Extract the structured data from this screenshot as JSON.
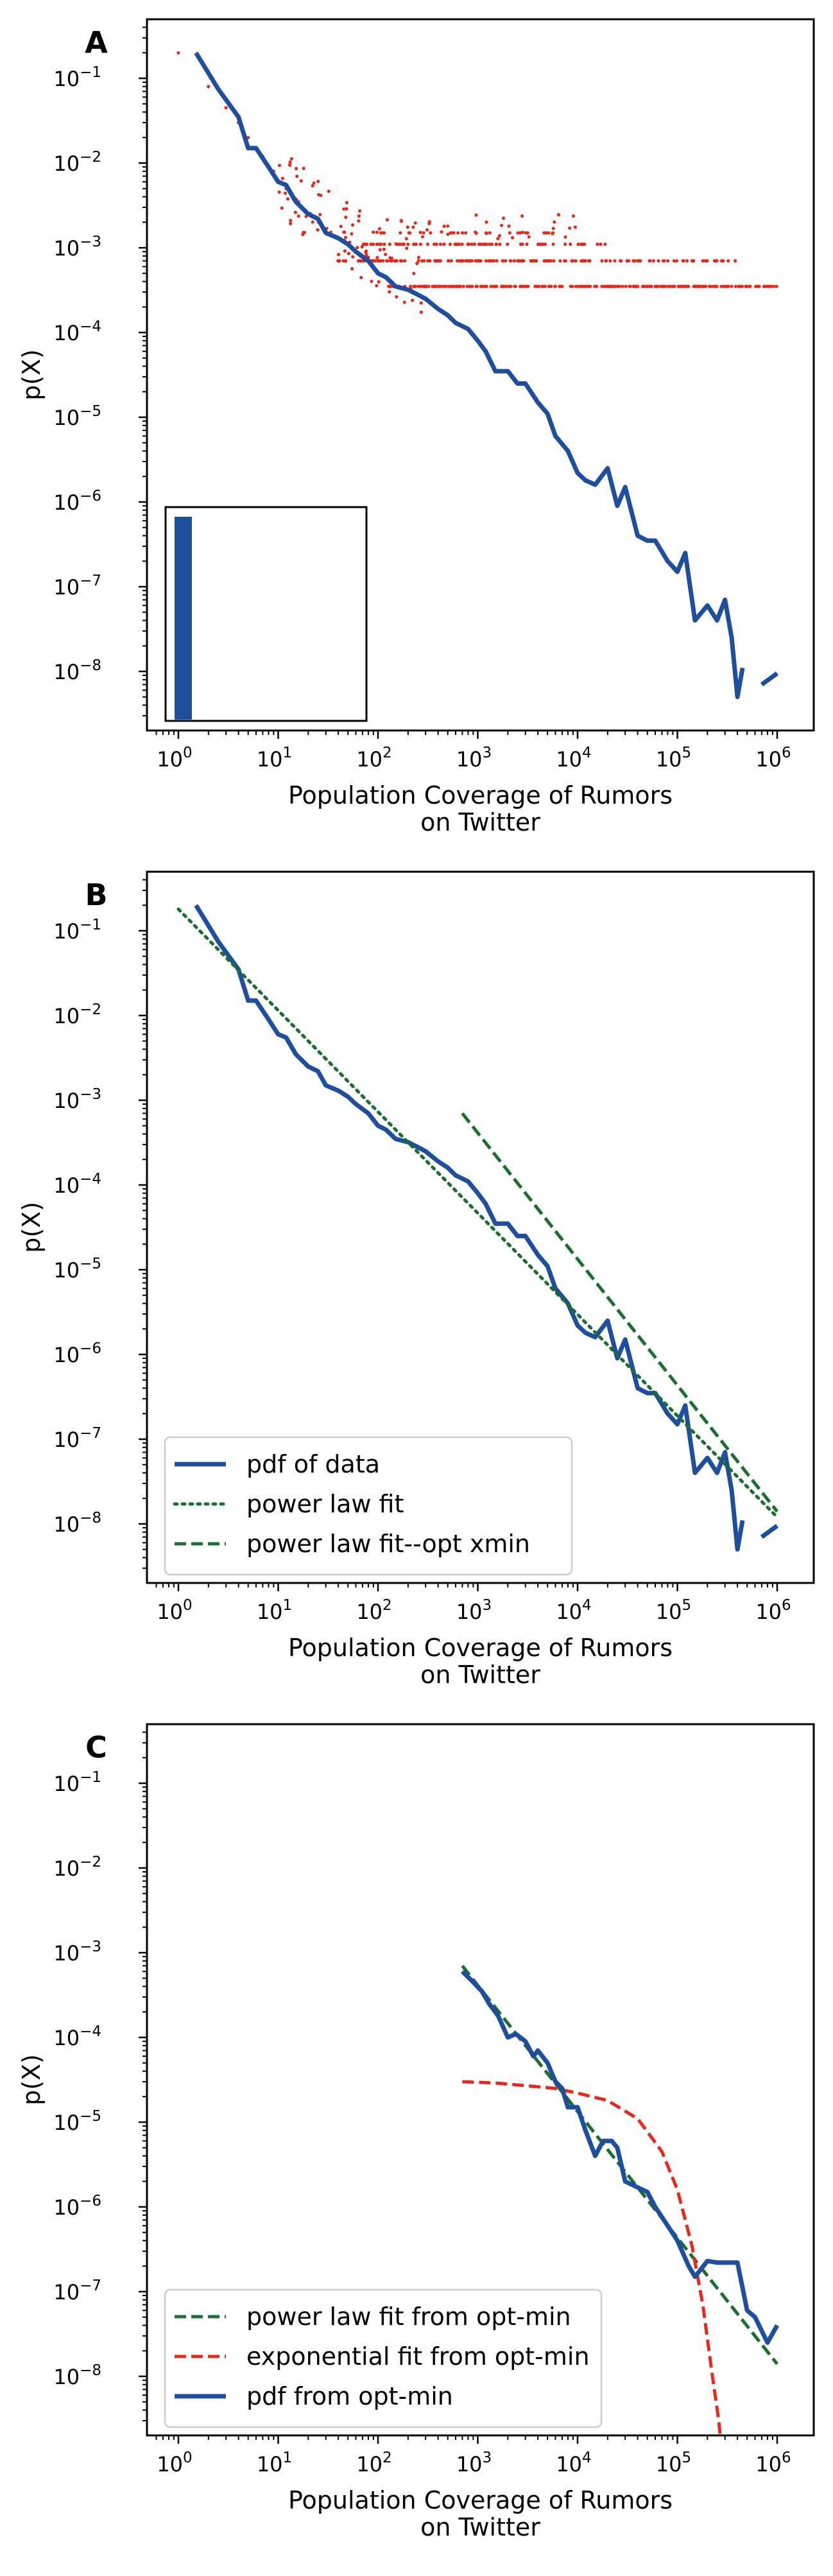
{
  "chart_data": [
    {
      "type": "line",
      "panel": "A",
      "xlabel": "Population Coverage of Rumors\non Twitter",
      "ylabel": "p(X)",
      "xscale": "log",
      "yscale": "log",
      "xlim": [
        0.6,
        1800000
      ],
      "ylim": [
        1e-09,
        0.5
      ],
      "xticks": [
        1,
        10,
        100,
        1000,
        10000,
        100000,
        1000000
      ],
      "yticks": [
        1e-08,
        1e-07,
        1e-06,
        1e-05,
        0.0001,
        0.001,
        0.01,
        0.1
      ],
      "grid": false,
      "colors": {
        "pdf": "#1f4e9c",
        "points": "#e8281b"
      },
      "series": [
        {
          "style": "solid",
          "x": [
            1.5,
            2.5,
            4,
            5,
            6,
            8,
            10,
            12,
            15,
            20,
            25,
            30,
            40,
            50,
            60,
            80,
            100,
            120,
            150,
            200,
            250,
            300,
            400,
            500,
            600,
            800,
            1000,
            1200,
            1500,
            2000,
            2500,
            3000,
            4000,
            5000,
            6000,
            8000,
            10000,
            12000,
            15000,
            20000,
            25000,
            30000,
            40000,
            50000,
            60000,
            80000,
            100000,
            120000,
            150000,
            200000,
            250000,
            300000,
            350000,
            400000,
            450000
          ],
          "y": [
            0.2,
            0.075,
            0.035,
            0.015,
            0.015,
            0.009,
            0.006,
            0.0055,
            0.0035,
            0.0025,
            0.0022,
            0.0015,
            0.0013,
            0.0011,
            0.0009,
            0.0007,
            0.0005,
            0.00045,
            0.00035,
            0.00032,
            0.00028,
            0.00025,
            0.00019,
            0.00016,
            0.00013,
            0.00011,
            8e-05,
            6e-05,
            3.5e-05,
            3.5e-05,
            2.5e-05,
            2.5e-05,
            1.5e-05,
            1.1e-05,
            6e-06,
            4e-06,
            2.2e-06,
            1.8e-06,
            1.6e-06,
            2.5e-06,
            9e-07,
            1.5e-06,
            4e-07,
            3.5e-07,
            3.5e-07,
            2e-07,
            1.5e-07,
            2.5e-07,
            4e-08,
            6e-08,
            4e-08,
            7e-08,
            2.5e-08,
            5e-09,
            1.1e-08
          ]
        },
        {
          "style": "solid",
          "x": [
            700000,
            1000000
          ],
          "y": [
            7e-09,
            9.5e-09
          ]
        },
        {
          "style": "scatter",
          "note_values": "red point cloud (raw frequency data)"
        }
      ],
      "inset": {
        "type": "bar",
        "values": [
          1
        ]
      }
    },
    {
      "type": "line",
      "panel": "B",
      "xlabel": "Population Coverage of Rumors\non Twitter",
      "ylabel": "p(X)",
      "xscale": "log",
      "yscale": "log",
      "xlim": [
        0.6,
        1800000
      ],
      "ylim": [
        2e-09,
        0.5
      ],
      "legend_position": "lower-left",
      "series": [
        {
          "name": "pdf of data",
          "style": "solid",
          "color": "#1f4e9c",
          "x": [
            1.5,
            2.5,
            4,
            5,
            6,
            8,
            10,
            12,
            15,
            20,
            25,
            30,
            40,
            50,
            60,
            80,
            100,
            120,
            150,
            200,
            250,
            300,
            400,
            500,
            600,
            800,
            1000,
            1200,
            1500,
            2000,
            2500,
            3000,
            4000,
            5000,
            6000,
            8000,
            10000,
            12000,
            15000,
            20000,
            25000,
            30000,
            40000,
            50000,
            60000,
            80000,
            100000,
            120000,
            150000,
            200000,
            250000,
            300000,
            350000,
            400000,
            450000
          ],
          "y": [
            0.2,
            0.075,
            0.035,
            0.015,
            0.015,
            0.009,
            0.006,
            0.0055,
            0.0035,
            0.0025,
            0.0022,
            0.0015,
            0.0013,
            0.0011,
            0.0009,
            0.0007,
            0.0005,
            0.00045,
            0.00035,
            0.00032,
            0.00028,
            0.00025,
            0.00019,
            0.00016,
            0.00013,
            0.00011,
            8e-05,
            6e-05,
            3.5e-05,
            3.5e-05,
            2.5e-05,
            2.5e-05,
            1.5e-05,
            1.1e-05,
            6e-06,
            4e-06,
            2.2e-06,
            1.8e-06,
            1.6e-06,
            2.5e-06,
            9e-07,
            1.5e-06,
            4e-07,
            3.5e-07,
            3.5e-07,
            2e-07,
            1.5e-07,
            2.5e-07,
            4e-08,
            6e-08,
            4e-08,
            7e-08,
            2.5e-08,
            5e-09,
            1.1e-08
          ]
        },
        {
          "name": "",
          "style": "solid",
          "color": "#1f4e9c",
          "x": [
            700000,
            1000000
          ],
          "y": [
            7e-09,
            9.5e-09
          ]
        },
        {
          "name": "power law fit",
          "style": "dotted",
          "color": "#1a6e2e",
          "x": [
            1,
            1000000
          ],
          "y": [
            0.18,
            1.2e-08
          ]
        },
        {
          "name": "power law fit--opt xmin",
          "style": "dashed",
          "color": "#1a6e2e",
          "x": [
            700,
            1000000
          ],
          "y": [
            0.0007,
            1.4e-08
          ]
        }
      ]
    },
    {
      "type": "line",
      "panel": "C",
      "xlabel": "Population Coverage of Rumors\non Twitter",
      "ylabel": "p(X)",
      "xscale": "log",
      "yscale": "log",
      "xlim": [
        0.6,
        1800000
      ],
      "ylim": [
        2e-09,
        0.5
      ],
      "legend_position": "lower-left",
      "series": [
        {
          "name": "power law fit from opt-min",
          "style": "dashed",
          "color": "#1a6e2e",
          "x": [
            700,
            1000000
          ],
          "y": [
            0.0007,
            1.4e-08
          ]
        },
        {
          "name": "exponential fit from opt-min",
          "style": "dashed",
          "color": "#e8281b",
          "x": [
            700,
            1500,
            3000,
            6000,
            10000,
            20000,
            40000,
            70000,
            100000,
            140000,
            180000,
            220000,
            260000,
            300000
          ],
          "y": [
            3e-05,
            2.9e-05,
            2.7e-05,
            2.5e-05,
            2.2e-05,
            1.8e-05,
            1.1e-05,
            4.5e-06,
            1.6e-06,
            3.5e-07,
            7e-08,
            1.2e-08,
            3e-09,
            5e-10
          ]
        },
        {
          "name": "pdf from opt-min",
          "style": "solid",
          "color": "#1f4e9c",
          "x": [
            700,
            900,
            1100,
            1300,
            1600,
            2000,
            2400,
            3000,
            3600,
            4000,
            5000,
            6000,
            7000,
            8000,
            10000,
            12000,
            15000,
            18000,
            22000,
            25000,
            30000,
            40000,
            50000,
            60000,
            80000,
            100000,
            130000,
            150000,
            200000,
            250000,
            300000,
            400000,
            500000,
            600000,
            800000,
            1000000
          ],
          "y": [
            0.0006,
            0.00045,
            0.00035,
            0.00025,
            0.00018,
            0.0001,
            0.00011,
            9e-05,
            6e-05,
            7e-05,
            5e-05,
            3e-05,
            2.5e-05,
            1.5e-05,
            1.5e-05,
            8e-06,
            4e-06,
            6e-06,
            6e-06,
            5e-06,
            2e-06,
            1.7e-06,
            1.5e-06,
            1e-06,
            6e-07,
            4e-07,
            2e-07,
            1.5e-07,
            2.3e-07,
            2.2e-07,
            2.2e-07,
            2.2e-07,
            6e-08,
            5e-08,
            2.5e-08,
            4e-08
          ]
        }
      ]
    }
  ],
  "panel_labels": [
    "A",
    "B",
    "C"
  ]
}
